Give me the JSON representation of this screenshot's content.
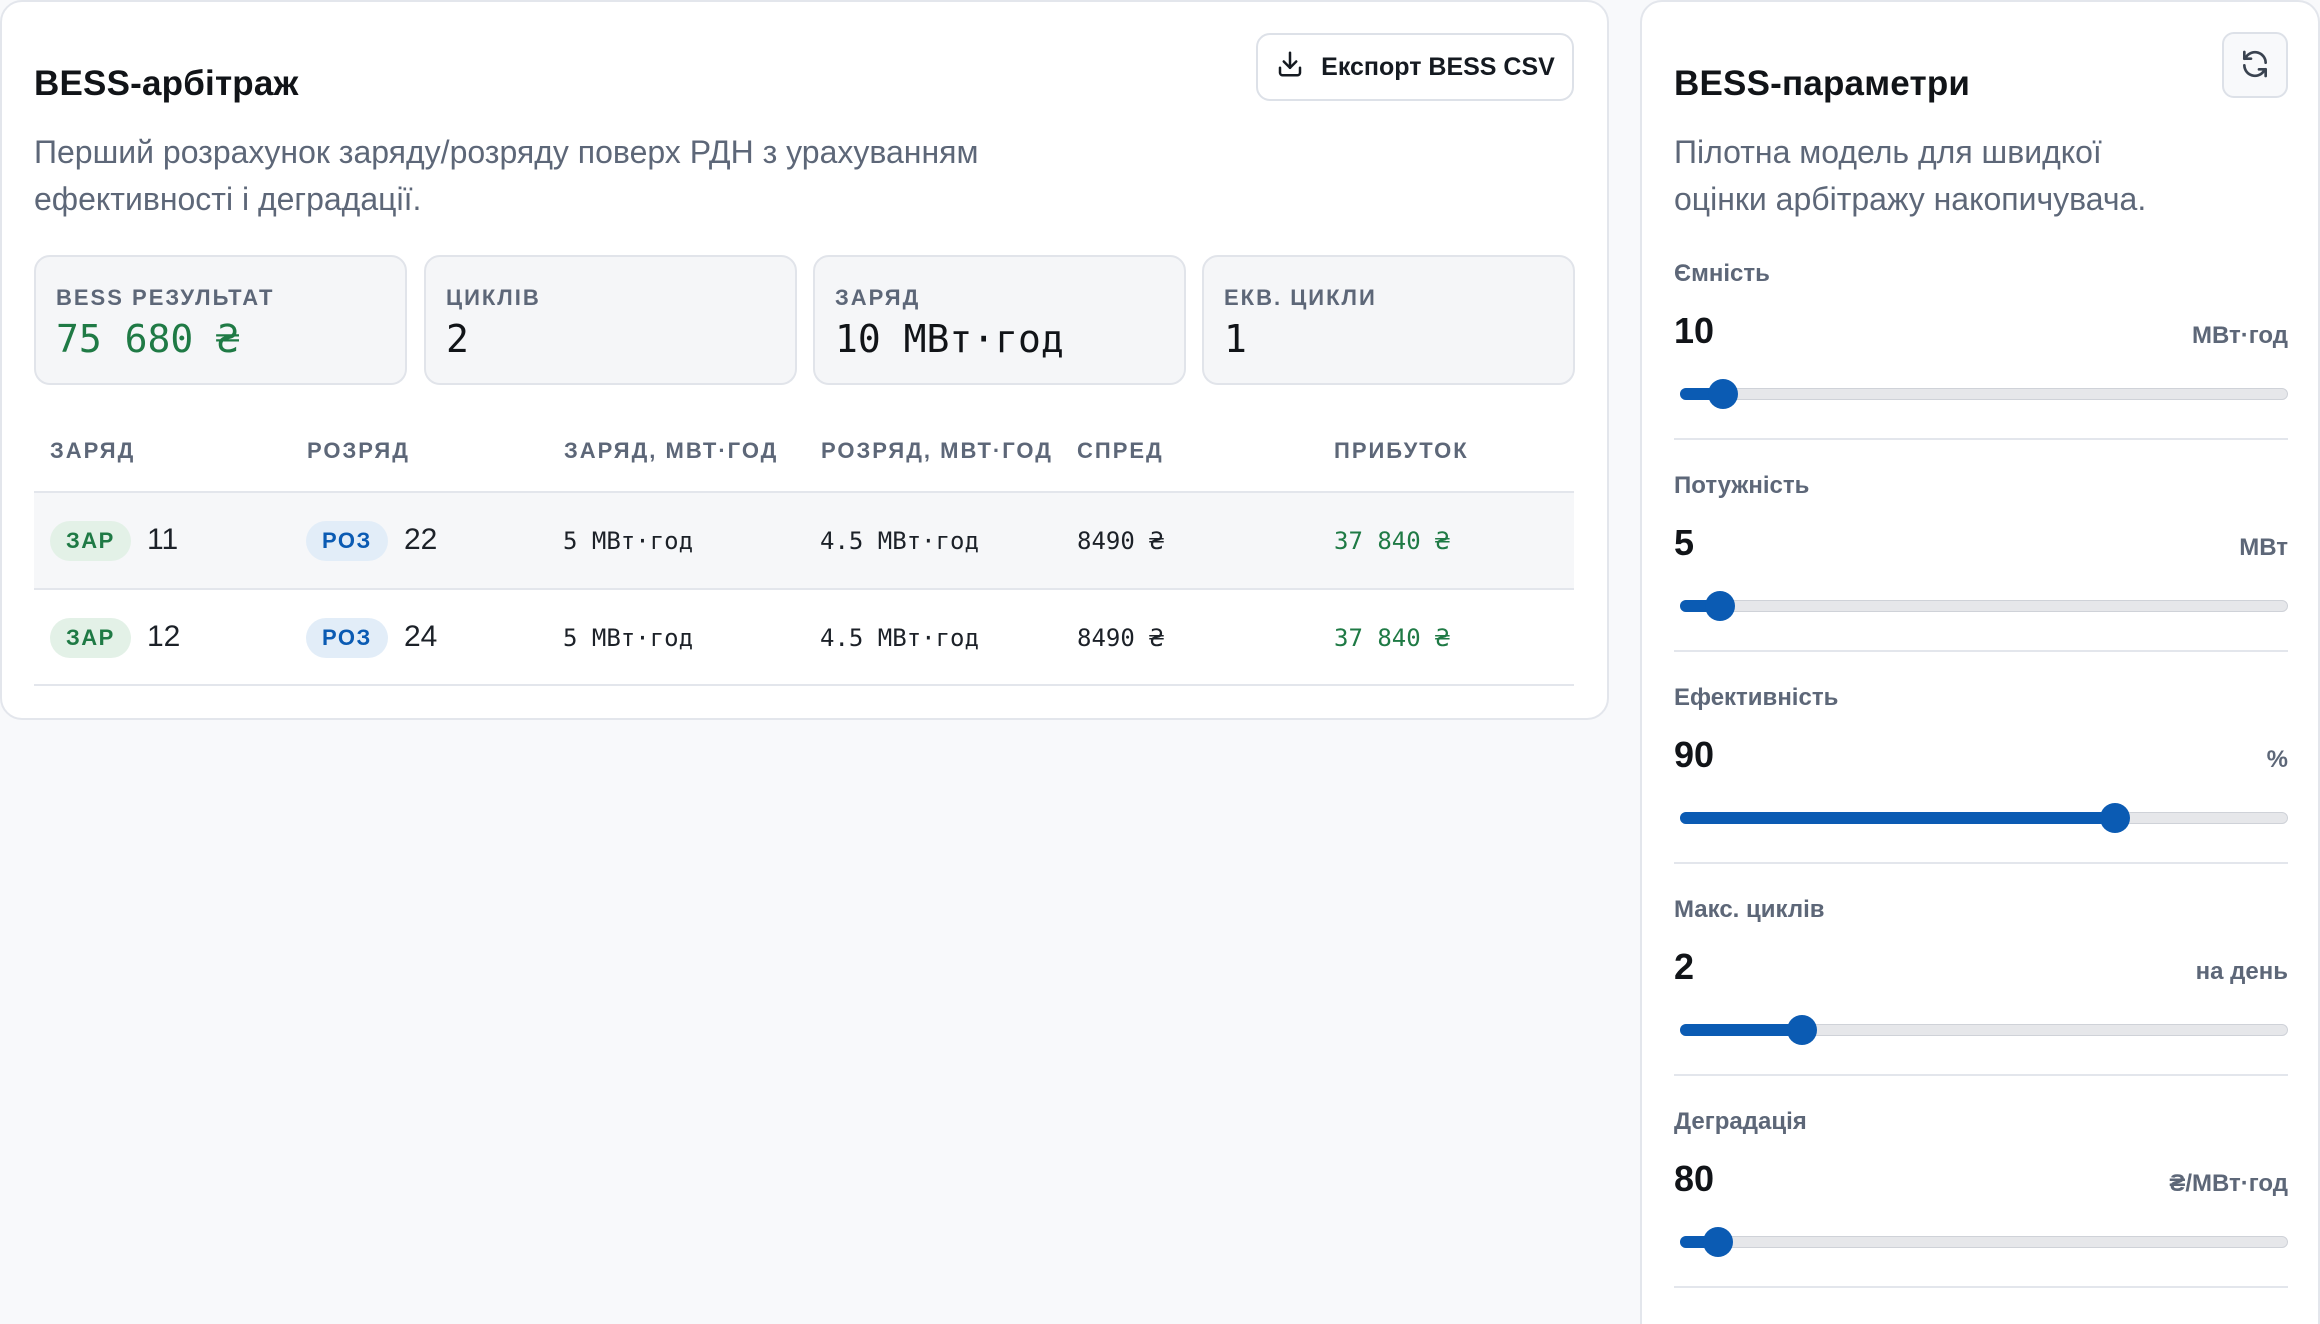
{
  "arbitrage": {
    "title": "BESS-арбітраж",
    "subtitle_line1": "Перший розрахунок заряду/розряду поверх РДН з урахуванням",
    "subtitle_line2": "ефективності і деградації.",
    "export_label": "Експорт BESS CSV",
    "export_icon": "download-icon",
    "stats": [
      {
        "label": "BESS РЕЗУЛЬТАТ",
        "value": "75 680 ₴",
        "color": "#1f7a45"
      },
      {
        "label": "ЦИКЛІВ",
        "value": "2"
      },
      {
        "label": "ЗАРЯД",
        "value": "10 МВт·год"
      },
      {
        "label": "ЕКВ. ЦИКЛИ",
        "value": "1"
      }
    ],
    "table": {
      "headers": [
        "ЗАРЯД",
        "РОЗРЯД",
        "ЗАРЯД, МВТ·ГОД",
        "РОЗРЯД, МВТ·ГОД",
        "СПРЕД",
        "ПРИБУТОК"
      ],
      "rows": [
        {
          "charge_badge": "ЗАР",
          "charge_hour": "11",
          "discharge_badge": "РОЗ",
          "discharge_hour": "22",
          "charge_mwh": "5 МВт·год",
          "discharge_mwh": "4.5 МВт·год",
          "spread": "8490 ₴",
          "profit": "37 840 ₴"
        },
        {
          "charge_badge": "ЗАР",
          "charge_hour": "12",
          "discharge_badge": "РОЗ",
          "discharge_hour": "24",
          "charge_mwh": "5 МВт·год",
          "discharge_mwh": "4.5 МВт·год",
          "spread": "8490 ₴",
          "profit": "37 840 ₴"
        }
      ]
    }
  },
  "params": {
    "title": "BESS-параметри",
    "subtitle_line1": "Пілотна модель для швидкої",
    "subtitle_line2": "оцінки арбітражу накопичувача.",
    "refresh_icon": "refresh-icon",
    "items": [
      {
        "label": "Ємність",
        "value": "10",
        "unit": "МВт·год",
        "level": 0.07
      },
      {
        "label": "Потужність",
        "value": "5",
        "unit": "МВт",
        "level": 0.065
      },
      {
        "label": "Ефективність",
        "value": "90",
        "unit": "%",
        "level": 0.715
      },
      {
        "label": "Макс. циклів",
        "value": "2",
        "unit": "на день",
        "level": 0.2
      },
      {
        "label": "Деградація",
        "value": "80",
        "unit": "₴/МВт·год",
        "level": 0.063
      }
    ]
  },
  "colors": {
    "accent": "#0b5bb3",
    "positive": "#1f7a45"
  }
}
